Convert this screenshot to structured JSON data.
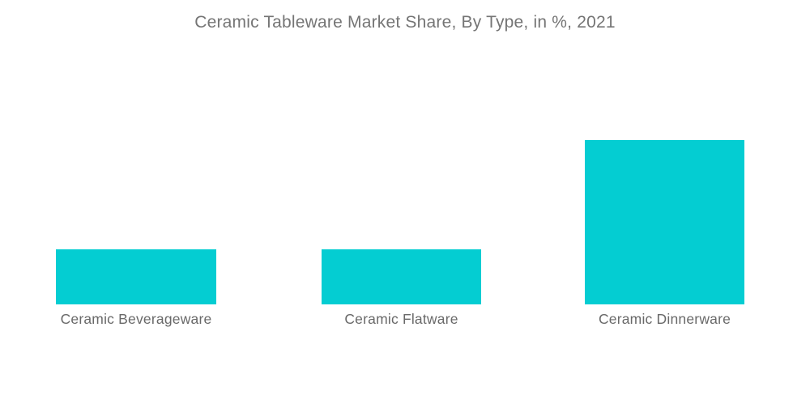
{
  "chart_data": {
    "type": "bar",
    "title": "Ceramic Tableware Market Share, By Type, in %, 2021",
    "categories": [
      "Ceramic Beverageware",
      "Ceramic Flatware",
      "Ceramic Dinnerware"
    ],
    "values": [
      20,
      20,
      60
    ],
    "unit": "%",
    "xlabel": "",
    "ylabel": "",
    "ylim": [
      0,
      100
    ],
    "grid": false,
    "axes_visible": false,
    "value_labels_visible": false,
    "legend": "none",
    "colors": {
      "bar": "#04CDD2",
      "title_text": "#757575",
      "label_text": "#696969",
      "background": "#ffffff"
    }
  }
}
